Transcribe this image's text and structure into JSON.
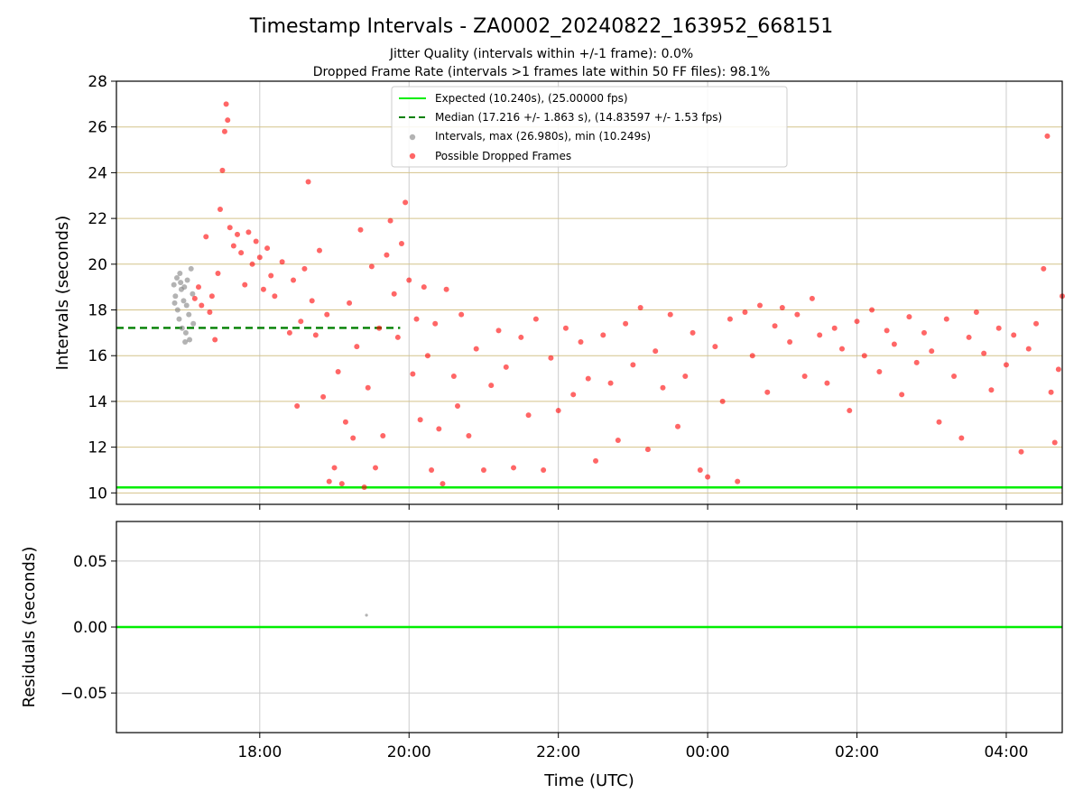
{
  "figure": {
    "title": "Timestamp Intervals - ZA0002_20240822_163952_668151",
    "subtitle_1": "Jitter Quality (intervals within +/-1 frame): 0.0%",
    "subtitle_2": "Dropped Frame Rate (intervals >1 frames late within 50 FF files): 98.1%"
  },
  "chart_data": [
    {
      "type": "scatter",
      "xlabel": "",
      "ylabel": "Intervals (seconds)",
      "x_unit": "hours UTC (wrapping past midnight)",
      "xlim": [
        16.08,
        28.75
      ],
      "ylim": [
        9.5,
        28
      ],
      "yticks": [
        10,
        12,
        14,
        16,
        18,
        20,
        22,
        24,
        26,
        28
      ],
      "ytick_labels": [
        "10",
        "12",
        "14",
        "16",
        "18",
        "20",
        "22",
        "24",
        "26",
        "28"
      ],
      "xticks": [
        18,
        20,
        22,
        24,
        26,
        28
      ],
      "xtick_labels": [
        "18:00",
        "20:00",
        "22:00",
        "00:00",
        "02:00",
        "04:00"
      ],
      "grid": true,
      "legend_position": "top-center",
      "series": [
        {
          "name": "Expected (10.240s), (25.00000 fps)",
          "kind": "hline",
          "y": 10.24,
          "color": "#00ee00",
          "style": "solid"
        },
        {
          "name": "Median (17.216 +/- 1.863 s), (14.83597 +/- 1.53 fps)",
          "kind": "hline",
          "y": 17.216,
          "color": "#007f00",
          "style": "dashed"
        },
        {
          "name": "Intervals, max (26.980s), min (10.249s)",
          "kind": "scatter",
          "color": "#808080",
          "points": [
            [
              16.85,
              19.1
            ],
            [
              16.87,
              18.6
            ],
            [
              16.89,
              19.4
            ],
            [
              16.9,
              18.0
            ],
            [
              16.92,
              17.6
            ],
            [
              16.93,
              19.6
            ],
            [
              16.95,
              18.9
            ],
            [
              16.96,
              17.2
            ],
            [
              16.98,
              18.4
            ],
            [
              16.99,
              19.0
            ],
            [
              17.0,
              16.6
            ],
            [
              17.02,
              18.2
            ],
            [
              17.03,
              19.3
            ],
            [
              17.05,
              17.8
            ],
            [
              17.06,
              16.7
            ],
            [
              17.08,
              19.8
            ],
            [
              17.1,
              18.7
            ],
            [
              17.11,
              17.4
            ],
            [
              16.86,
              18.3
            ],
            [
              16.94,
              19.2
            ],
            [
              17.01,
              17.0
            ]
          ]
        },
        {
          "name": "Possible Dropped Frames",
          "kind": "scatter",
          "color": "#ff0000",
          "points": [
            [
              17.13,
              18.5
            ],
            [
              17.18,
              19.0
            ],
            [
              17.22,
              18.2
            ],
            [
              17.28,
              21.2
            ],
            [
              17.33,
              17.9
            ],
            [
              17.36,
              18.6
            ],
            [
              17.4,
              16.7
            ],
            [
              17.44,
              19.6
            ],
            [
              17.47,
              22.4
            ],
            [
              17.5,
              24.1
            ],
            [
              17.53,
              25.8
            ],
            [
              17.55,
              27.0
            ],
            [
              17.57,
              26.3
            ],
            [
              17.6,
              21.6
            ],
            [
              17.65,
              20.8
            ],
            [
              17.7,
              21.3
            ],
            [
              17.75,
              20.5
            ],
            [
              17.8,
              19.1
            ],
            [
              17.85,
              21.4
            ],
            [
              17.9,
              20.0
            ],
            [
              17.95,
              21.0
            ],
            [
              18.0,
              20.3
            ],
            [
              18.05,
              18.9
            ],
            [
              18.1,
              20.7
            ],
            [
              18.15,
              19.5
            ],
            [
              18.2,
              18.6
            ],
            [
              18.3,
              20.1
            ],
            [
              18.4,
              17.0
            ],
            [
              18.45,
              19.3
            ],
            [
              18.5,
              13.8
            ],
            [
              18.55,
              17.5
            ],
            [
              18.6,
              19.8
            ],
            [
              18.65,
              23.6
            ],
            [
              18.7,
              18.4
            ],
            [
              18.75,
              16.9
            ],
            [
              18.8,
              20.6
            ],
            [
              18.85,
              14.2
            ],
            [
              18.9,
              17.8
            ],
            [
              18.93,
              10.5
            ],
            [
              19.0,
              11.1
            ],
            [
              19.05,
              15.3
            ],
            [
              19.1,
              10.4
            ],
            [
              19.15,
              13.1
            ],
            [
              19.2,
              18.3
            ],
            [
              19.25,
              12.4
            ],
            [
              19.3,
              16.4
            ],
            [
              19.35,
              21.5
            ],
            [
              19.4,
              10.25
            ],
            [
              19.45,
              14.6
            ],
            [
              19.5,
              19.9
            ],
            [
              19.55,
              11.1
            ],
            [
              19.6,
              17.2
            ],
            [
              19.65,
              12.5
            ],
            [
              19.7,
              20.4
            ],
            [
              19.75,
              21.9
            ],
            [
              19.8,
              18.7
            ],
            [
              19.85,
              16.8
            ],
            [
              19.9,
              20.9
            ],
            [
              19.95,
              22.7
            ],
            [
              20.0,
              19.3
            ],
            [
              20.05,
              15.2
            ],
            [
              20.1,
              17.6
            ],
            [
              20.15,
              13.2
            ],
            [
              20.2,
              19.0
            ],
            [
              20.25,
              16.0
            ],
            [
              20.3,
              11.0
            ],
            [
              20.35,
              17.4
            ],
            [
              20.4,
              12.8
            ],
            [
              20.45,
              10.4
            ],
            [
              20.5,
              18.9
            ],
            [
              20.6,
              15.1
            ],
            [
              20.65,
              13.8
            ],
            [
              20.7,
              17.8
            ],
            [
              20.8,
              12.5
            ],
            [
              20.9,
              16.3
            ],
            [
              21.0,
              11.0
            ],
            [
              21.1,
              14.7
            ],
            [
              21.2,
              17.1
            ],
            [
              21.3,
              15.5
            ],
            [
              21.4,
              11.1
            ],
            [
              21.5,
              16.8
            ],
            [
              21.6,
              13.4
            ],
            [
              21.7,
              17.6
            ],
            [
              21.8,
              11.0
            ],
            [
              21.9,
              15.9
            ],
            [
              22.0,
              13.6
            ],
            [
              22.1,
              17.2
            ],
            [
              22.2,
              14.3
            ],
            [
              22.3,
              16.6
            ],
            [
              22.4,
              15.0
            ],
            [
              22.5,
              11.4
            ],
            [
              22.6,
              16.9
            ],
            [
              22.7,
              14.8
            ],
            [
              22.8,
              12.3
            ],
            [
              22.9,
              17.4
            ],
            [
              23.0,
              15.6
            ],
            [
              23.1,
              18.1
            ],
            [
              23.2,
              11.9
            ],
            [
              23.3,
              16.2
            ],
            [
              23.4,
              14.6
            ],
            [
              23.5,
              17.8
            ],
            [
              23.6,
              12.9
            ],
            [
              23.7,
              15.1
            ],
            [
              23.8,
              17.0
            ],
            [
              23.9,
              11.0
            ],
            [
              24.0,
              10.7
            ],
            [
              24.1,
              16.4
            ],
            [
              24.2,
              14.0
            ],
            [
              24.3,
              17.6
            ],
            [
              24.4,
              10.5
            ],
            [
              24.5,
              17.9
            ],
            [
              24.6,
              16.0
            ],
            [
              24.7,
              18.2
            ],
            [
              24.8,
              14.4
            ],
            [
              24.9,
              17.3
            ],
            [
              25.0,
              18.1
            ],
            [
              25.1,
              16.6
            ],
            [
              25.2,
              17.8
            ],
            [
              25.3,
              15.1
            ],
            [
              25.4,
              18.5
            ],
            [
              25.5,
              16.9
            ],
            [
              25.6,
              14.8
            ],
            [
              25.7,
              17.2
            ],
            [
              25.8,
              16.3
            ],
            [
              25.9,
              13.6
            ],
            [
              26.0,
              17.5
            ],
            [
              26.1,
              16.0
            ],
            [
              26.2,
              18.0
            ],
            [
              26.3,
              15.3
            ],
            [
              26.4,
              17.1
            ],
            [
              26.5,
              16.5
            ],
            [
              26.6,
              14.3
            ],
            [
              26.7,
              17.7
            ],
            [
              26.8,
              15.7
            ],
            [
              26.9,
              17.0
            ],
            [
              27.0,
              16.2
            ],
            [
              27.1,
              13.1
            ],
            [
              27.2,
              17.6
            ],
            [
              27.3,
              15.1
            ],
            [
              27.4,
              12.4
            ],
            [
              27.5,
              16.8
            ],
            [
              27.6,
              17.9
            ],
            [
              27.7,
              16.1
            ],
            [
              27.8,
              14.5
            ],
            [
              27.9,
              17.2
            ],
            [
              28.0,
              15.6
            ],
            [
              28.1,
              16.9
            ],
            [
              28.2,
              11.8
            ],
            [
              28.3,
              16.3
            ],
            [
              28.4,
              17.4
            ],
            [
              28.5,
              19.8
            ],
            [
              28.55,
              25.6
            ],
            [
              28.6,
              14.4
            ],
            [
              28.65,
              12.2
            ],
            [
              28.7,
              15.4
            ],
            [
              28.75,
              18.6
            ]
          ]
        }
      ]
    },
    {
      "type": "scatter",
      "xlabel": "Time (UTC)",
      "ylabel": "Residuals (seconds)",
      "xlim": [
        16.08,
        28.75
      ],
      "ylim": [
        -0.08,
        0.08
      ],
      "yticks": [
        0.05,
        0.0,
        -0.05
      ],
      "ytick_labels": [
        "0.05",
        "0.00",
        "−0.05"
      ],
      "xticks": [
        18,
        20,
        22,
        24,
        26,
        28
      ],
      "xtick_labels": [
        "18:00",
        "20:00",
        "22:00",
        "00:00",
        "02:00",
        "04:00"
      ],
      "grid": true,
      "series": [
        {
          "kind": "hline",
          "y": 0.0,
          "color": "#00ee00",
          "style": "solid"
        },
        {
          "kind": "scatter",
          "color": "#808080",
          "points": [
            [
              19.43,
              0.009
            ]
          ]
        }
      ]
    }
  ]
}
